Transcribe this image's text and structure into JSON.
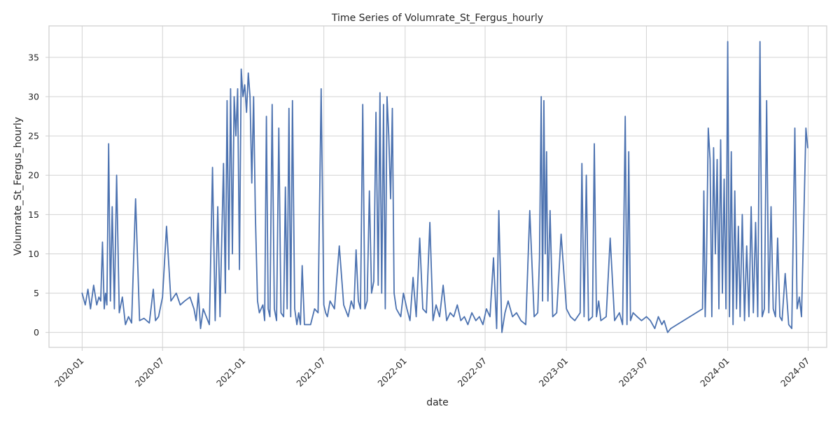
{
  "chart_data": {
    "type": "line",
    "title": "Time Series of Volumrate_St_Fergus_hourly",
    "xlabel": "date",
    "ylabel": "Volumrate_St_Fergus_hourly",
    "xlim": [
      "2019-10-18",
      "2024-08-12"
    ],
    "ylim": [
      -1.9,
      39
    ],
    "x_ticks": [
      "2020-01",
      "2020-07",
      "2021-01",
      "2021-07",
      "2022-01",
      "2022-07",
      "2023-01",
      "2023-07",
      "2024-01",
      "2024-07"
    ],
    "y_ticks": [
      0,
      5,
      10,
      15,
      20,
      25,
      30,
      35
    ],
    "grid": true,
    "color": "#4c72b0",
    "series": [
      {
        "x": [
          "2020-01-01",
          "2020-01-08",
          "2020-01-14",
          "2020-01-20",
          "2020-01-27",
          "2020-02-03",
          "2020-02-08",
          "2020-02-12",
          "2020-02-16",
          "2020-02-20",
          "2020-02-23",
          "2020-02-26",
          "2020-03-01",
          "2020-03-05",
          "2020-03-09",
          "2020-03-14",
          "2020-03-19",
          "2020-03-25",
          "2020-04-01",
          "2020-04-08",
          "2020-04-15",
          "2020-04-22",
          "2020-05-01",
          "2020-05-10",
          "2020-05-20",
          "2020-06-01",
          "2020-06-10",
          "2020-06-15",
          "2020-06-22",
          "2020-07-01",
          "2020-07-10",
          "2020-07-20",
          "2020-08-01",
          "2020-08-10",
          "2020-08-20",
          "2020-09-01",
          "2020-09-10",
          "2020-09-15",
          "2020-09-20",
          "2020-09-25",
          "2020-10-01",
          "2020-10-08",
          "2020-10-15",
          "2020-10-22",
          "2020-10-28",
          "2020-11-03",
          "2020-11-08",
          "2020-11-12",
          "2020-11-16",
          "2020-11-20",
          "2020-11-24",
          "2020-11-28",
          "2020-12-02",
          "2020-12-06",
          "2020-12-10",
          "2020-12-14",
          "2020-12-18",
          "2020-12-22",
          "2020-12-26",
          "2020-12-30",
          "2021-01-03",
          "2021-01-07",
          "2021-01-11",
          "2021-01-15",
          "2021-01-19",
          "2021-01-23",
          "2021-01-27",
          "2021-02-01",
          "2021-02-05",
          "2021-02-09",
          "2021-02-13",
          "2021-02-17",
          "2021-02-21",
          "2021-02-25",
          "2021-03-01",
          "2021-03-06",
          "2021-03-11",
          "2021-03-16",
          "2021-03-21",
          "2021-03-26",
          "2021-04-01",
          "2021-04-05",
          "2021-04-09",
          "2021-04-13",
          "2021-04-17",
          "2021-04-21",
          "2021-04-26",
          "2021-05-01",
          "2021-05-05",
          "2021-05-09",
          "2021-05-13",
          "2021-05-18",
          "2021-05-24",
          "2021-06-01",
          "2021-06-10",
          "2021-06-18",
          "2021-06-25",
          "2021-07-01",
          "2021-07-05",
          "2021-07-09",
          "2021-07-15",
          "2021-07-25",
          "2021-08-05",
          "2021-08-15",
          "2021-08-25",
          "2021-09-01",
          "2021-09-07",
          "2021-09-12",
          "2021-09-17",
          "2021-09-22",
          "2021-09-27",
          "2021-10-02",
          "2021-10-07",
          "2021-10-12",
          "2021-10-17",
          "2021-10-22",
          "2021-10-27",
          "2021-11-01",
          "2021-11-05",
          "2021-11-09",
          "2021-11-13",
          "2021-11-17",
          "2021-11-21",
          "2021-11-25",
          "2021-11-29",
          "2021-12-03",
          "2021-12-07",
          "2021-12-12",
          "2021-12-17",
          "2021-12-22",
          "2021-12-28",
          "2022-01-05",
          "2022-01-12",
          "2022-01-19",
          "2022-01-26",
          "2022-02-03",
          "2022-02-10",
          "2022-02-18",
          "2022-02-26",
          "2022-03-05",
          "2022-03-12",
          "2022-03-20",
          "2022-03-28",
          "2022-04-05",
          "2022-04-13",
          "2022-04-21",
          "2022-04-29",
          "2022-05-07",
          "2022-05-15",
          "2022-05-23",
          "2022-06-01",
          "2022-06-10",
          "2022-06-18",
          "2022-06-26",
          "2022-07-04",
          "2022-07-12",
          "2022-07-20",
          "2022-07-27",
          "2022-08-01",
          "2022-08-08",
          "2022-08-15",
          "2022-08-22",
          "2022-09-01",
          "2022-09-10",
          "2022-09-20",
          "2022-10-01",
          "2022-10-10",
          "2022-10-20",
          "2022-10-28",
          "2022-11-01",
          "2022-11-05",
          "2022-11-08",
          "2022-11-11",
          "2022-11-14",
          "2022-11-17",
          "2022-11-20",
          "2022-11-25",
          "2022-12-01",
          "2022-12-10",
          "2022-12-20",
          "2023-01-01",
          "2023-01-10",
          "2023-01-20",
          "2023-02-01",
          "2023-02-05",
          "2023-02-10",
          "2023-02-15",
          "2023-02-20",
          "2023-03-01",
          "2023-03-05",
          "2023-03-10",
          "2023-03-15",
          "2023-03-20",
          "2023-04-01",
          "2023-04-10",
          "2023-04-20",
          "2023-05-01",
          "2023-05-08",
          "2023-05-14",
          "2023-05-18",
          "2023-05-22",
          "2023-05-26",
          "2023-06-01",
          "2023-06-10",
          "2023-06-20",
          "2023-07-01",
          "2023-07-10",
          "2023-07-20",
          "2023-07-28",
          "2023-08-05",
          "2023-08-10",
          "2023-08-18",
          "2023-08-25",
          "2023-11-05",
          "2023-11-08",
          "2023-11-11",
          "2023-11-14",
          "2023-11-18",
          "2023-11-22",
          "2023-11-26",
          "2023-11-30",
          "2023-12-04",
          "2023-12-08",
          "2023-12-12",
          "2023-12-16",
          "2023-12-20",
          "2023-12-24",
          "2023-12-28",
          "2024-01-01",
          "2024-01-05",
          "2024-01-09",
          "2024-01-13",
          "2024-01-17",
          "2024-01-21",
          "2024-01-25",
          "2024-01-29",
          "2024-02-03",
          "2024-02-08",
          "2024-02-13",
          "2024-02-18",
          "2024-02-23",
          "2024-02-28",
          "2024-03-04",
          "2024-03-09",
          "2024-03-14",
          "2024-03-19",
          "2024-03-24",
          "2024-03-29",
          "2024-04-03",
          "2024-04-08",
          "2024-04-13",
          "2024-04-18",
          "2024-04-23",
          "2024-04-28",
          "2024-05-03",
          "2024-05-10",
          "2024-05-18",
          "2024-05-25",
          "2024-06-01",
          "2024-06-06",
          "2024-06-11",
          "2024-06-16",
          "2024-06-21",
          "2024-06-26",
          "2024-06-30"
        ],
        "values": [
          5.0,
          3.5,
          5.5,
          3.0,
          6.0,
          3.5,
          4.5,
          4.0,
          11.5,
          3.0,
          5.0,
          3.5,
          24.0,
          4.0,
          16.0,
          3.0,
          20.0,
          2.5,
          4.5,
          1.0,
          2.0,
          1.2,
          17.0,
          1.5,
          1.8,
          1.2,
          5.5,
          1.5,
          2.0,
          4.5,
          13.5,
          4.0,
          5.0,
          3.5,
          4.0,
          4.5,
          3.0,
          1.5,
          5.0,
          0.5,
          3.0,
          2.0,
          1.0,
          21.0,
          1.5,
          16.0,
          2.0,
          12.0,
          21.5,
          5.0,
          29.5,
          8.0,
          31.0,
          10.0,
          30.0,
          25.0,
          31.0,
          8.0,
          33.5,
          30.0,
          31.5,
          28.0,
          33.0,
          30.0,
          19.0,
          30.0,
          15.0,
          4.0,
          2.5,
          3.0,
          3.5,
          1.5,
          27.5,
          3.0,
          2.0,
          29.0,
          3.0,
          1.5,
          26.0,
          2.5,
          2.0,
          18.5,
          3.0,
          28.5,
          2.0,
          29.5,
          3.0,
          1.0,
          2.5,
          1.0,
          8.5,
          1.0,
          1.0,
          1.0,
          3.0,
          2.5,
          31.0,
          3.5,
          2.5,
          2.0,
          4.0,
          3.0,
          11.0,
          3.5,
          2.0,
          4.0,
          3.0,
          10.5,
          4.0,
          3.0,
          29.0,
          3.0,
          4.0,
          18.0,
          5.0,
          6.5,
          28.0,
          6.0,
          30.5,
          5.0,
          29.0,
          3.0,
          30.0,
          25.0,
          17.0,
          28.5,
          5.0,
          3.0,
          2.5,
          2.0,
          5.0,
          3.0,
          1.5,
          7.0,
          2.0,
          12.0,
          3.0,
          2.5,
          14.0,
          1.5,
          3.5,
          2.0,
          6.0,
          1.5,
          2.5,
          2.0,
          3.5,
          1.5,
          2.0,
          1.0,
          2.5,
          1.5,
          2.0,
          1.0,
          3.0,
          2.0,
          9.5,
          0.5,
          15.5,
          0.0,
          2.5,
          4.0,
          2.0,
          2.5,
          1.5,
          1.0,
          15.5,
          2.0,
          2.5,
          9.5,
          30.0,
          4.0,
          29.5,
          10.0,
          23.0,
          4.0,
          15.5,
          2.0,
          2.5,
          12.5,
          3.0,
          2.0,
          1.5,
          2.5,
          21.5,
          2.0,
          20.0,
          1.5,
          2.0,
          24.0,
          2.0,
          4.0,
          1.5,
          2.0,
          12.0,
          1.5,
          2.5,
          1.0,
          27.5,
          1.0,
          23.0,
          1.5,
          2.5,
          2.0,
          1.5,
          2.0,
          1.5,
          0.5,
          2.0,
          1.0,
          1.5,
          0.0,
          0.5,
          3.0,
          18.0,
          2.0,
          9.0,
          26.0,
          22.0,
          2.0,
          23.5,
          10.0,
          22.0,
          3.0,
          24.5,
          5.0,
          19.5,
          3.0,
          37.0,
          2.0,
          23.0,
          1.0,
          18.0,
          3.0,
          13.5,
          2.0,
          15.0,
          1.5,
          11.0,
          2.0,
          16.0,
          2.5,
          14.0,
          2.0,
          37.0,
          2.0,
          3.0,
          29.5,
          2.5,
          16.0,
          3.0,
          2.0,
          12.0,
          2.0,
          1.5,
          7.5,
          1.0,
          0.5,
          26.0,
          3.0,
          4.5,
          2.0,
          14.0,
          26.0,
          23.5
        ]
      }
    ]
  }
}
